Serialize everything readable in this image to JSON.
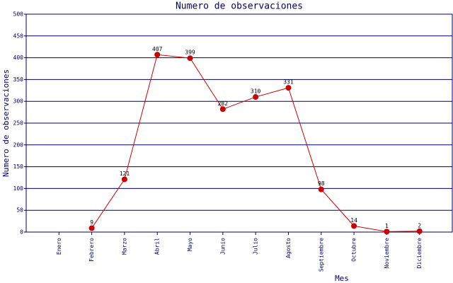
{
  "chart_data": {
    "type": "line",
    "title": "Numero de observaciones",
    "x_label": "Mes",
    "y_label": "Numero de observaciones",
    "categories": [
      "Enero",
      "Febrero",
      "Marzo",
      "Abril",
      "Mayo",
      "Junio",
      "Julio",
      "Agosto",
      "Septiembre",
      "Octubre",
      "Noviembre",
      "Diciembre"
    ],
    "values": [
      null,
      9,
      121,
      407,
      399,
      282,
      310,
      331,
      98,
      14,
      1,
      2
    ],
    "color": "#cc0000",
    "ylim": [
      0,
      500
    ],
    "yticks": [
      0,
      50,
      100,
      150,
      200,
      250,
      300,
      350,
      400,
      450,
      500
    ],
    "grid": true
  }
}
